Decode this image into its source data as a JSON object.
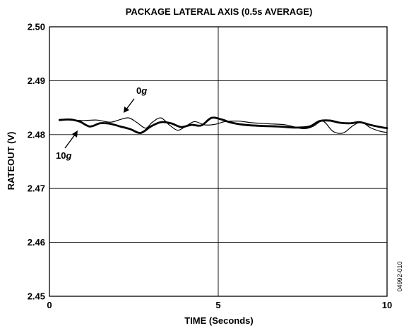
{
  "chart_data": {
    "type": "line",
    "title": "PACKAGE LATERAL AXIS (0.5s AVERAGE)",
    "xlabel": "TIME (Seconds)",
    "ylabel": "RATEOUT (V)",
    "xlim": [
      0,
      10
    ],
    "ylim": [
      2.45,
      2.5
    ],
    "x_ticks": [
      "0",
      "5",
      "10"
    ],
    "y_ticks": [
      "2.45",
      "2.46",
      "2.47",
      "2.48",
      "2.49",
      "2.50"
    ],
    "grid": true,
    "series": [
      {
        "name": "0g",
        "x": [
          0.3,
          0.6,
          1.0,
          1.4,
          1.8,
          2.1,
          2.35,
          2.6,
          2.85,
          3.05,
          3.3,
          3.55,
          3.8,
          4.05,
          4.3,
          4.6,
          4.9,
          5.2,
          5.6,
          6.0,
          6.5,
          7.0,
          7.5,
          7.8,
          8.1,
          8.4,
          8.7,
          9.0,
          9.25,
          9.5,
          9.8,
          10.0
        ],
        "y": [
          2.4828,
          2.4827,
          2.4826,
          2.4827,
          2.4823,
          2.4828,
          2.4831,
          2.4822,
          2.4812,
          2.4823,
          2.4831,
          2.4818,
          2.4808,
          2.4816,
          2.4824,
          2.4818,
          2.4819,
          2.4824,
          2.4825,
          2.4822,
          2.482,
          2.4818,
          2.4811,
          2.4815,
          2.4825,
          2.4806,
          2.4803,
          2.4817,
          2.4823,
          2.4813,
          2.4806,
          2.4804
        ]
      },
      {
        "name": "10g",
        "x": [
          0.3,
          0.6,
          0.9,
          1.2,
          1.5,
          1.8,
          2.1,
          2.4,
          2.7,
          3.0,
          3.3,
          3.6,
          3.9,
          4.2,
          4.5,
          4.8,
          5.1,
          5.4,
          5.8,
          6.3,
          6.8,
          7.3,
          7.7,
          8.0,
          8.3,
          8.6,
          8.9,
          9.2,
          9.5,
          9.8,
          10.0
        ],
        "y": [
          2.4827,
          2.4828,
          2.4824,
          2.4815,
          2.4821,
          2.482,
          2.4815,
          2.481,
          2.4803,
          2.4815,
          2.4823,
          2.4821,
          2.4814,
          2.4818,
          2.4817,
          2.4831,
          2.4828,
          2.4822,
          2.4818,
          2.4816,
          2.4815,
          2.4813,
          2.4815,
          2.4825,
          2.4826,
          2.4822,
          2.4821,
          2.4823,
          2.4818,
          2.4814,
          2.4812
        ]
      }
    ],
    "annotations": [
      {
        "num": "0",
        "unit": "g"
      },
      {
        "num": "10",
        "unit": "g"
      }
    ],
    "figure_code": "04992-010"
  }
}
